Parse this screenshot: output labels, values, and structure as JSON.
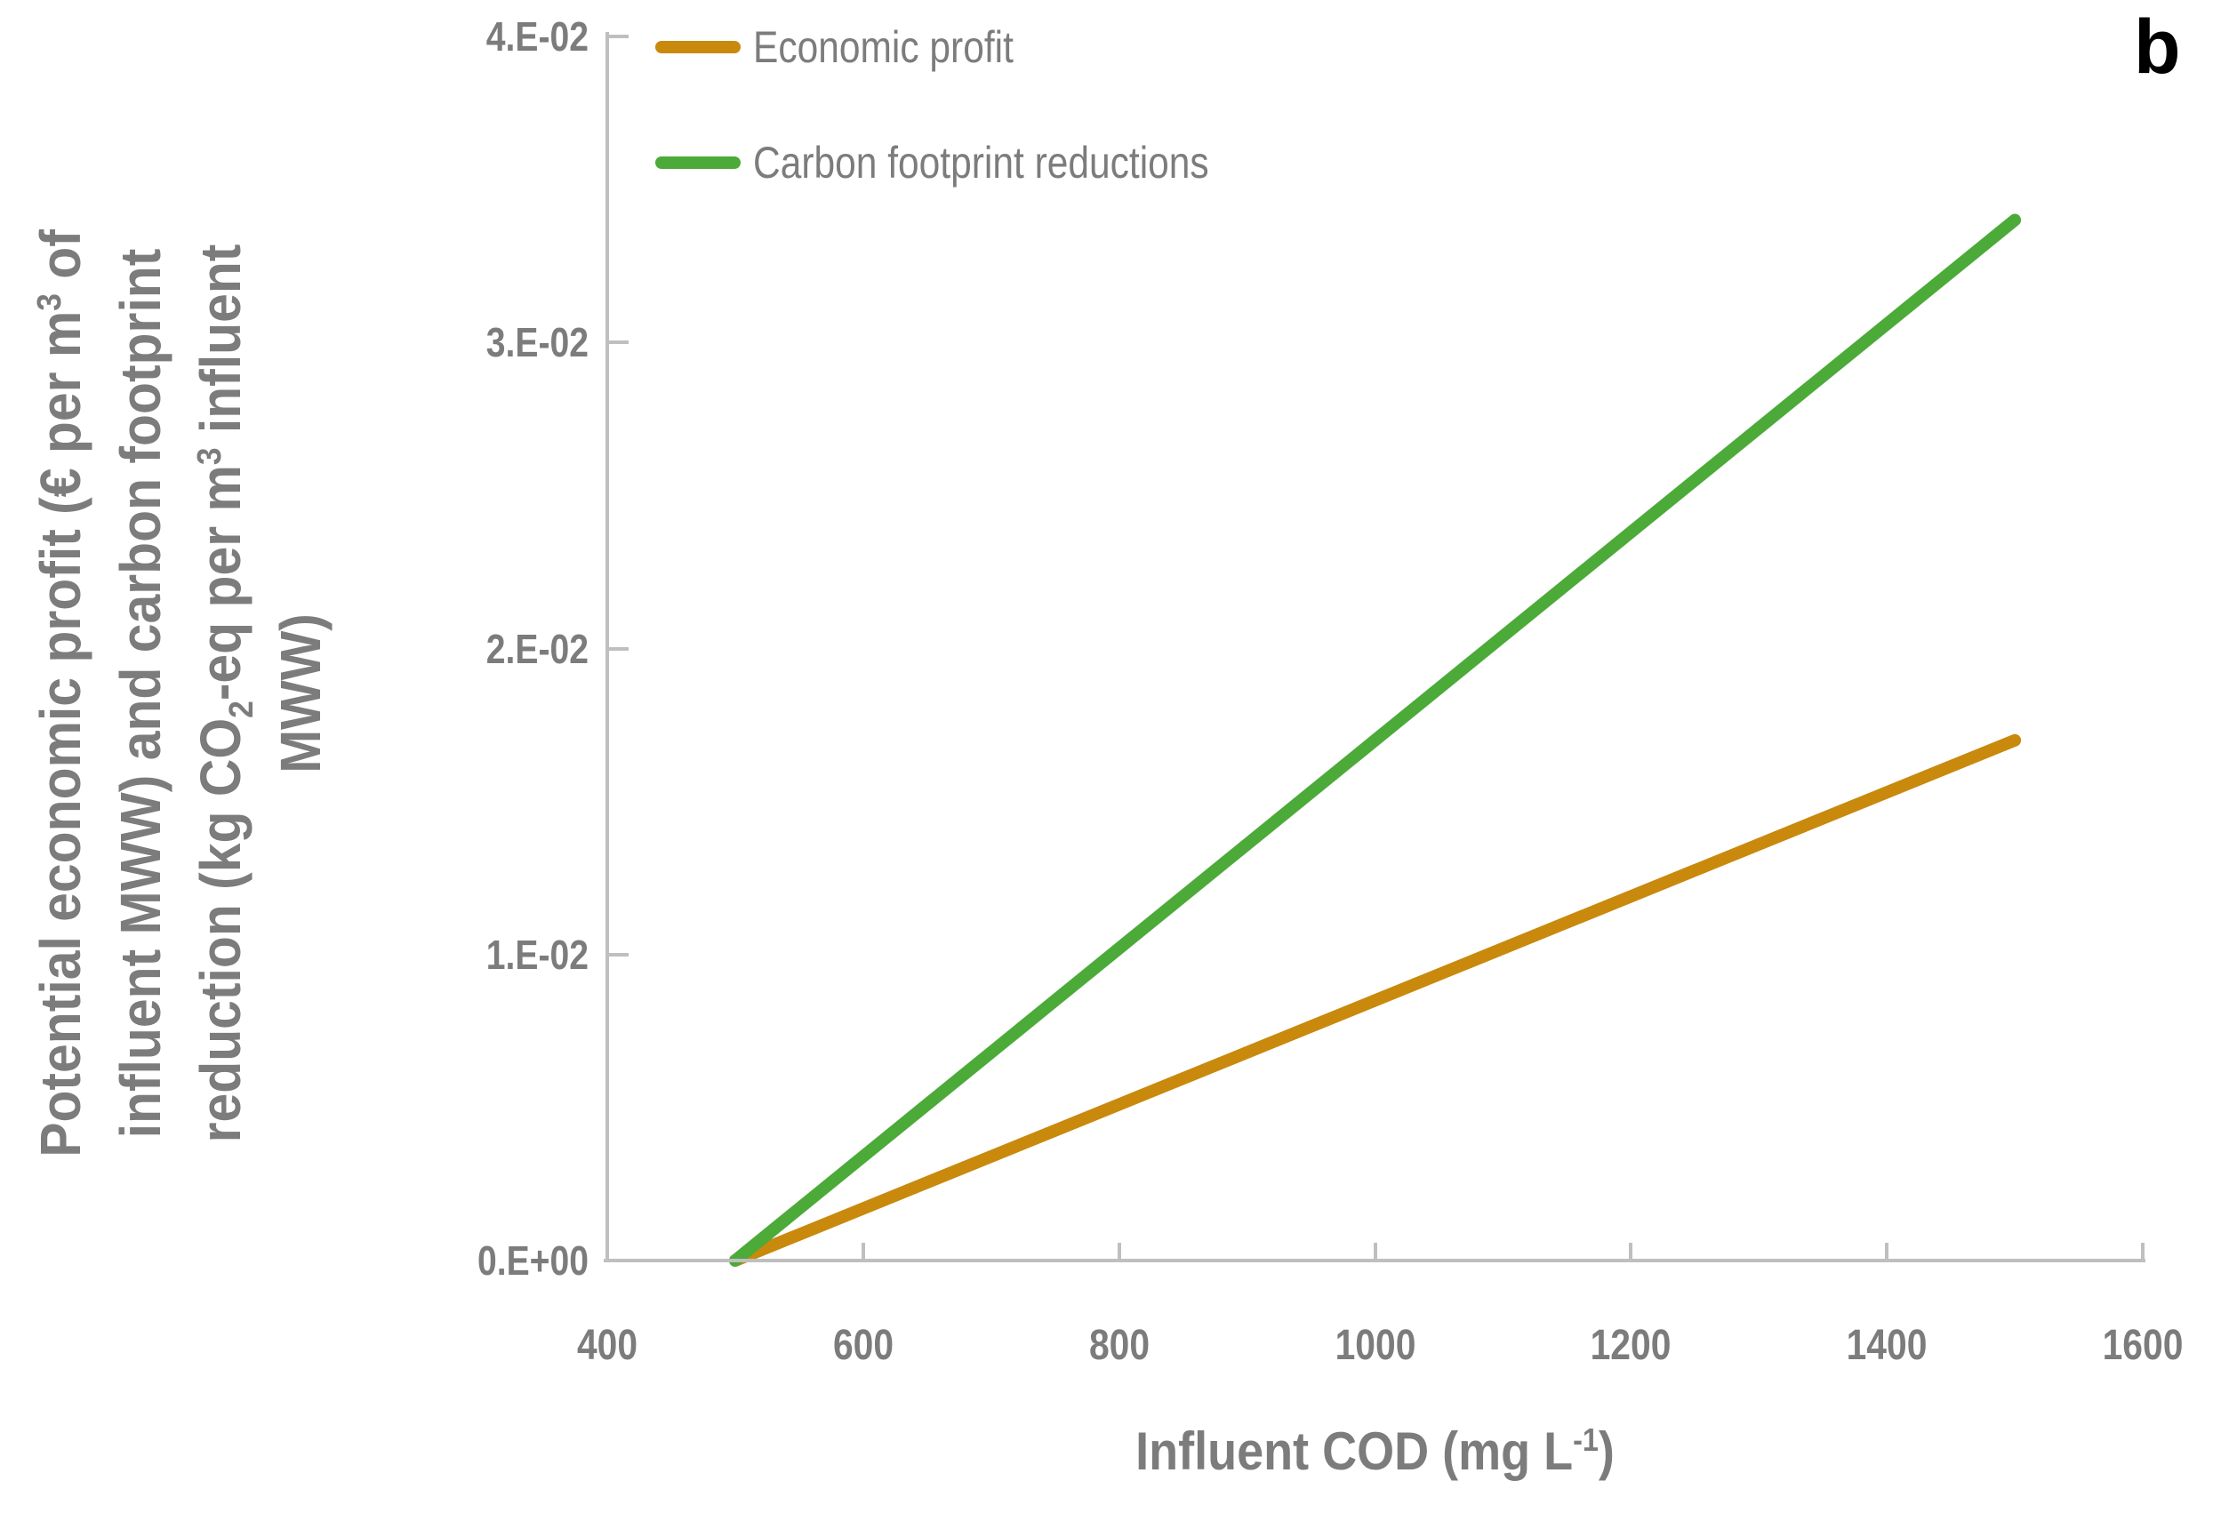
{
  "panel_label": "b",
  "colors": {
    "economic_profit": "#C8890D",
    "carbon_footprint": "#4CAA39",
    "axis_line": "#BFBFBF",
    "text_gray": "#7C7C7C",
    "panel_label": "#000000"
  },
  "legend": {
    "items": [
      {
        "label": "Economic profit",
        "series_index": 0
      },
      {
        "label": "Carbon footprint reductions",
        "series_index": 1
      }
    ]
  },
  "x_axis": {
    "title_segments": [
      {
        "t": "Influent COD (mg L",
        "v": "n"
      },
      {
        "t": "-1",
        "v": "sup"
      },
      {
        "t": ")",
        "v": "n"
      }
    ]
  },
  "y_axis": {
    "title_lines": [
      [
        {
          "t": "Potential economic profit (€ per m",
          "v": "n"
        },
        {
          "t": "3",
          "v": "sup"
        },
        {
          "t": " of",
          "v": "n"
        }
      ],
      [
        {
          "t": "influent MWW) and carbon footprint",
          "v": "n"
        }
      ],
      [
        {
          "t": "reduction (kg CO",
          "v": "n"
        },
        {
          "t": "2",
          "v": "sub"
        },
        {
          "t": "-eq per m",
          "v": "n"
        },
        {
          "t": "3",
          "v": "sup"
        },
        {
          "t": " influent",
          "v": "n"
        }
      ],
      [
        {
          "t": "MWW)",
          "v": "n"
        }
      ]
    ]
  },
  "chart_data": {
    "type": "line",
    "title": "",
    "xlabel": "Influent COD (mg L-1)",
    "ylabel": "Potential economic profit (€ per m3 of influent MWW) and carbon footprint reduction (kg CO2-eq per m3 influent MWW)",
    "xlim": [
      400,
      1600
    ],
    "ylim": [
      0,
      0.04
    ],
    "x_ticks": [
      400,
      600,
      800,
      1000,
      1200,
      1400,
      1600
    ],
    "y_tick_labels": [
      "0.E+00",
      "1.E-02",
      "2.E-02",
      "3.E-02",
      "4.E-02"
    ],
    "grid": false,
    "legend_position": "top-left-inside",
    "series": [
      {
        "name": "Economic profit",
        "color": "#C8890D",
        "x": [
          500,
          1500
        ],
        "y": [
          0,
          0.017
        ]
      },
      {
        "name": "Carbon footprint reductions",
        "color": "#4CAA39",
        "x": [
          500,
          1500
        ],
        "y": [
          0,
          0.034
        ]
      }
    ]
  }
}
